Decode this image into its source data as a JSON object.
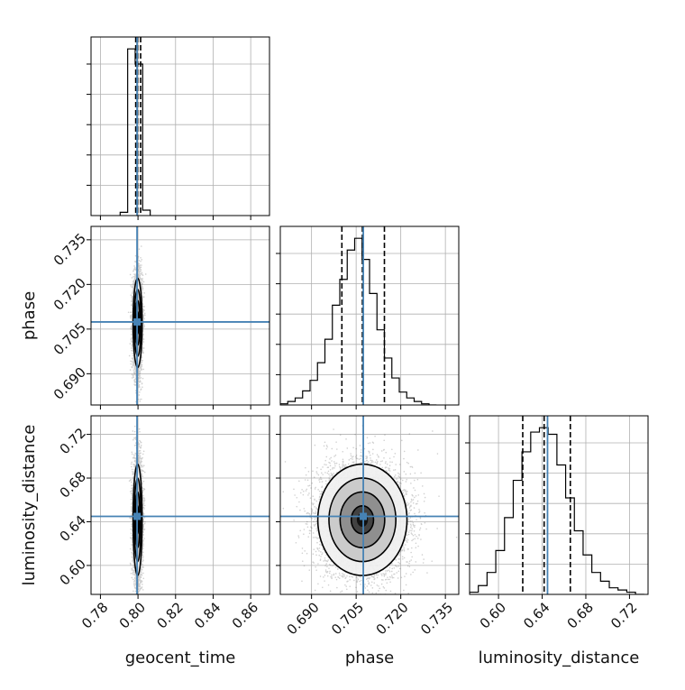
{
  "chart_data": {
    "type": "corner",
    "parameters": [
      {
        "name": "geocent_time",
        "axis_range": [
          0.775,
          0.87
        ],
        "ticks": [
          "0.78",
          "0.80",
          "0.82",
          "0.84",
          "0.86"
        ],
        "tick_values": [
          0.78,
          0.8,
          0.82,
          0.84,
          0.86
        ],
        "injection": 0.7995,
        "quantiles": [
          0.7988,
          0.7998,
          0.8014
        ],
        "hist_bin_edges": [
          0.7905,
          0.7945,
          0.7985,
          0.8025,
          0.8065
        ],
        "hist_counts": [
          60,
          3080,
          2800,
          100
        ]
      },
      {
        "name": "phase",
        "axis_range": [
          0.6795,
          0.7395
        ],
        "ticks": [
          "0.690",
          "0.705",
          "0.720",
          "0.735"
        ],
        "tick_values": [
          0.69,
          0.705,
          0.72,
          0.735
        ],
        "injection": 0.7074,
        "quantiles": [
          0.7002,
          0.7071,
          0.7145
        ],
        "hist_bin_edges": [
          0.6795,
          0.682,
          0.6845,
          0.687,
          0.6895,
          0.692,
          0.6945,
          0.697,
          0.6995,
          0.702,
          0.7045,
          0.707,
          0.7095,
          0.712,
          0.7145,
          0.717,
          0.7195,
          0.722,
          0.7245,
          0.727,
          0.7295,
          0.732
        ],
        "hist_counts": [
          10,
          30,
          60,
          120,
          210,
          360,
          560,
          850,
          1070,
          1320,
          1420,
          1240,
          950,
          640,
          400,
          230,
          110,
          60,
          30,
          10,
          0
        ]
      },
      {
        "name": "luminosity_distance",
        "axis_range": [
          0.5735,
          0.737
        ],
        "ticks": [
          "0.60",
          "0.64",
          "0.68",
          "0.72"
        ],
        "tick_values": [
          0.6,
          0.64,
          0.68,
          0.72
        ],
        "injection": 0.6449,
        "quantiles": [
          0.6222,
          0.6418,
          0.6658
        ],
        "hist_bin_edges": [
          0.5735,
          0.5815,
          0.5895,
          0.5975,
          0.6055,
          0.6135,
          0.6215,
          0.6295,
          0.6375,
          0.6455,
          0.6535,
          0.6615,
          0.6695,
          0.6775,
          0.6855,
          0.6935,
          0.7015,
          0.7095,
          0.7175,
          0.7255,
          0.7335
        ],
        "hist_counts": [
          10,
          40,
          100,
          200,
          350,
          520,
          650,
          740,
          760,
          730,
          590,
          440,
          290,
          180,
          100,
          60,
          30,
          20,
          10,
          0
        ]
      }
    ],
    "pair_samples": {
      "geocent_time_sd": 0.0012,
      "phase_sd": 0.0075,
      "luminosity_distance_sd": 0.0255,
      "n_points": 6000
    },
    "contour_levels_sigma": [
      0.5,
      1.0,
      1.5,
      2.0
    ],
    "grid": true,
    "injection_color": "#4682b4",
    "hist_color": "#000000"
  }
}
